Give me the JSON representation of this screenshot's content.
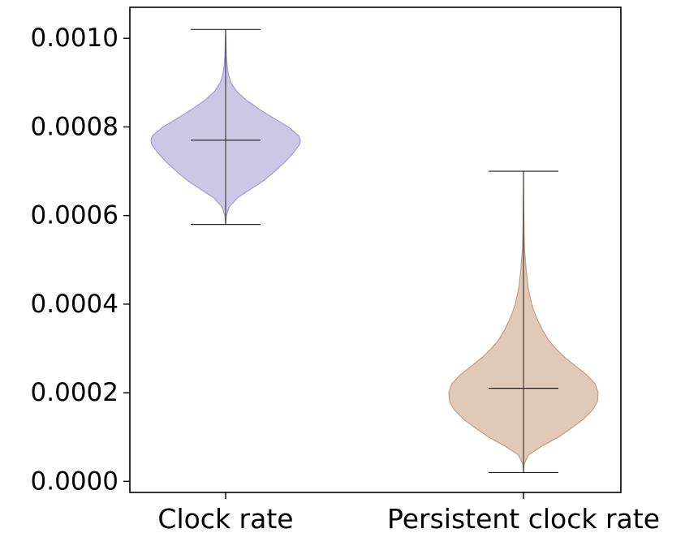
{
  "chart_data": {
    "type": "violin",
    "categories": [
      "Clock rate",
      "Persistent clock rate"
    ],
    "series": [
      {
        "name": "Clock rate",
        "color": "#b9b2db",
        "edge_color": "#a59cd0",
        "min": 0.00058,
        "max": 0.00102,
        "center": 0.00077,
        "density_profile": [
          [
            0.00058,
            0.0
          ],
          [
            0.0006,
            0.01
          ],
          [
            0.00062,
            0.05
          ],
          [
            0.00064,
            0.16
          ],
          [
            0.00066,
            0.34
          ],
          [
            0.00068,
            0.52
          ],
          [
            0.0007,
            0.66
          ],
          [
            0.00072,
            0.79
          ],
          [
            0.00074,
            0.9
          ],
          [
            0.00076,
            0.99
          ],
          [
            0.00077,
            1.0
          ],
          [
            0.00078,
            0.98
          ],
          [
            0.0008,
            0.84
          ],
          [
            0.00082,
            0.64
          ],
          [
            0.00084,
            0.45
          ],
          [
            0.00086,
            0.28
          ],
          [
            0.00088,
            0.15
          ],
          [
            0.0009,
            0.07
          ],
          [
            0.00092,
            0.035
          ],
          [
            0.00094,
            0.02
          ],
          [
            0.00096,
            0.01
          ],
          [
            0.00098,
            0.006
          ],
          [
            0.001,
            0.003
          ],
          [
            0.00102,
            0.0
          ]
        ]
      },
      {
        "name": "Persistent clock rate",
        "color": "#d4b59b",
        "edge_color": "#c59e80",
        "min": 2e-05,
        "max": 0.0007,
        "center": 0.00021,
        "density_profile": [
          [
            2e-05,
            0.0
          ],
          [
            4e-05,
            0.01
          ],
          [
            6e-05,
            0.07
          ],
          [
            8e-05,
            0.25
          ],
          [
            0.0001,
            0.47
          ],
          [
            0.00012,
            0.64
          ],
          [
            0.00014,
            0.8
          ],
          [
            0.00016,
            0.92
          ],
          [
            0.00018,
            0.99
          ],
          [
            0.0002,
            1.0
          ],
          [
            0.00022,
            0.96
          ],
          [
            0.00024,
            0.85
          ],
          [
            0.00026,
            0.7
          ],
          [
            0.00028,
            0.55
          ],
          [
            0.0003,
            0.43
          ],
          [
            0.00032,
            0.33
          ],
          [
            0.00034,
            0.26
          ],
          [
            0.00036,
            0.2
          ],
          [
            0.00038,
            0.15
          ],
          [
            0.0004,
            0.11
          ],
          [
            0.00044,
            0.06
          ],
          [
            0.00048,
            0.035
          ],
          [
            0.00052,
            0.015
          ],
          [
            0.00056,
            0.008
          ],
          [
            0.0006,
            0.004
          ],
          [
            0.00064,
            0.002
          ],
          [
            0.0007,
            0.0
          ]
        ]
      }
    ],
    "yticks": [
      "0.0000",
      "0.0002",
      "0.0004",
      "0.0006",
      "0.0008",
      "0.0010"
    ],
    "ylim": [
      -2.5e-05,
      0.00107
    ],
    "title": "",
    "xlabel": "",
    "ylabel": "",
    "grid": false,
    "legend": false
  }
}
